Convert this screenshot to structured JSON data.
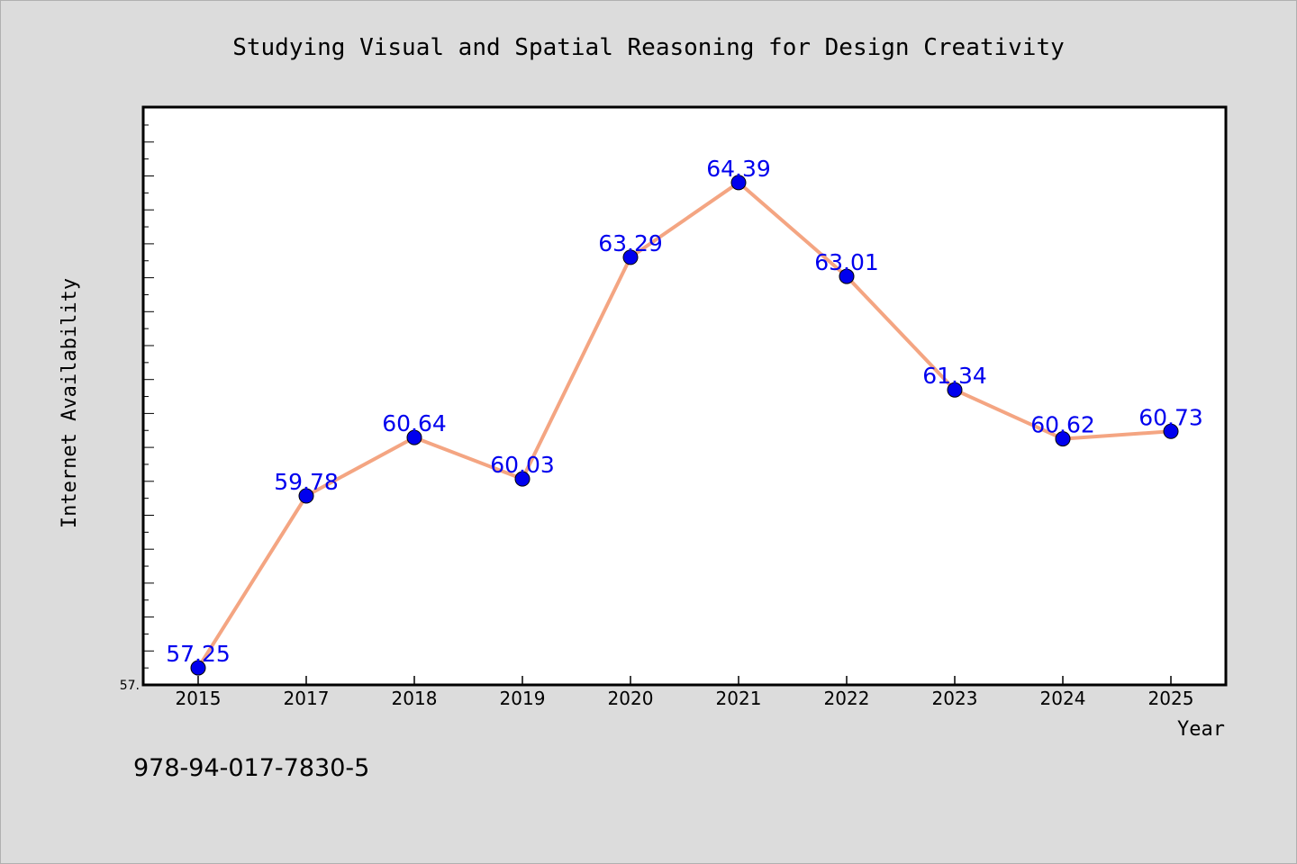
{
  "chart_data": {
    "type": "line",
    "title": "Studying Visual and Spatial Reasoning for Design Creativity",
    "xlabel": "Year",
    "ylabel": "Internet Availability",
    "categories": [
      "2015",
      "2017",
      "2018",
      "2019",
      "2020",
      "2021",
      "2022",
      "2023",
      "2024",
      "2025"
    ],
    "series": [
      {
        "values": [
          57.25,
          59.78,
          60.64,
          60.03,
          63.29,
          64.39,
          63.01,
          61.34,
          60.62,
          60.73
        ],
        "labels": [
          "57.25",
          "59.78",
          "60.64",
          "60.03",
          "63.29",
          "64.39",
          "63.01",
          "61.34",
          "60.62",
          "60.73"
        ]
      }
    ],
    "ylim": [
      57.0,
      65.5
    ],
    "y_tick_label": "57.",
    "grid": false,
    "line_color": "#f4a582",
    "marker_color": "#0000ee",
    "label_color": "#0000ee"
  },
  "footer": {
    "isbn": "978-94-017-7830-5"
  }
}
